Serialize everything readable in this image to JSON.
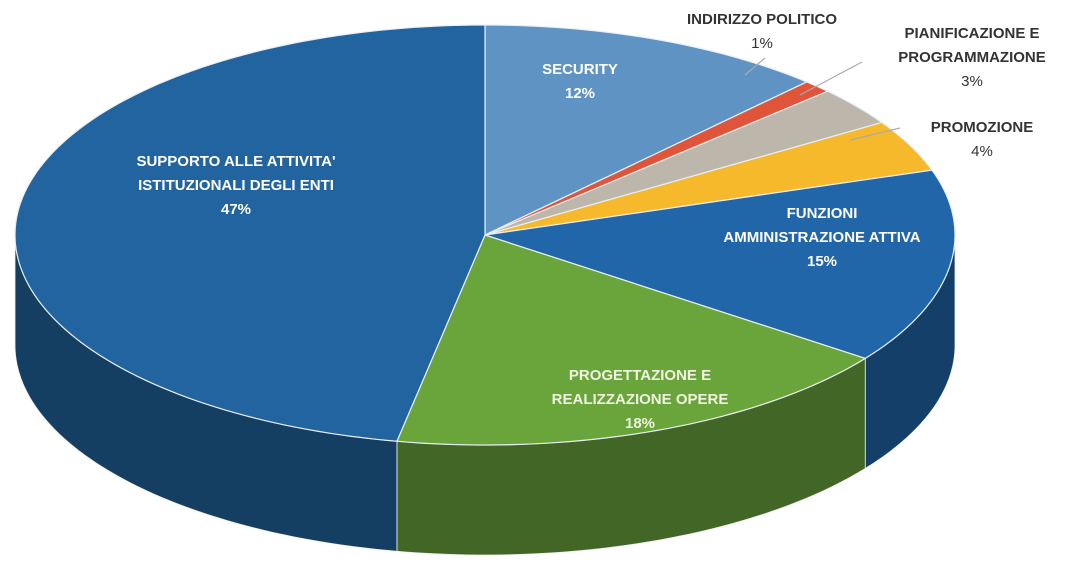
{
  "chart_data": {
    "type": "pie",
    "categories": [
      "SECURITY",
      "INDIRIZZO POLITICO",
      "PIANIFICAZIONE E PROGRAMMAZIONE",
      "PROMOZIONE",
      "FUNZIONI AMMINISTRAZIONE ATTIVA",
      "PROGETTAZIONE E REALIZZAZIONE OPERE",
      "SUPPORTO ALLE ATTIVITA' ISTITUZIONALI DEGLI ENTI"
    ],
    "values": [
      12,
      1,
      3,
      4,
      15,
      18,
      47
    ],
    "value_labels": [
      "12%",
      "1%",
      "3%",
      "4%",
      "15%",
      "18%",
      "47%"
    ],
    "colors": [
      "#5f93c4",
      "#e0553a",
      "#bdb7ab",
      "#f6b92b",
      "#2166a8",
      "#6aa53c",
      "#2264a0"
    ]
  }
}
